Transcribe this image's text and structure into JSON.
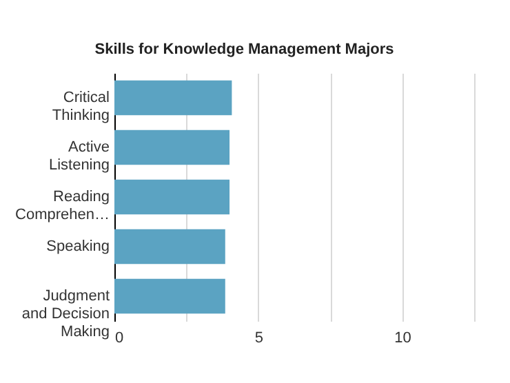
{
  "chart_data": {
    "type": "bar",
    "orientation": "horizontal",
    "title": "Skills for Knowledge Management Majors",
    "categories": [
      "Critical Thinking",
      "Active Listening",
      "Reading Comprehen…",
      "Speaking",
      "Judgment and Decision Making"
    ],
    "values": [
      4.08,
      4.0,
      4.0,
      3.85,
      3.85
    ],
    "color": "#5ba3c2",
    "xlim": [
      0,
      12.5
    ],
    "xticks": [
      0,
      {
        "value": 2.5,
        "label": null
      },
      5,
      {
        "value": 7.5,
        "label": null
      },
      10,
      {
        "value": 12.5,
        "label": null
      }
    ],
    "grid": "x"
  }
}
